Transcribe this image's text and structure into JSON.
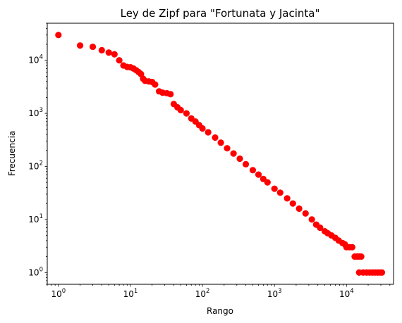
{
  "chart_data": {
    "type": "scatter",
    "title": "Ley de Zipf para \"Fortunata y Jacinta\"",
    "xlabel": "Rango",
    "ylabel": "Frecuencia",
    "xscale": "log",
    "yscale": "log",
    "xlim": [
      0.7,
      45000
    ],
    "ylim": [
      0.6,
      50000
    ],
    "grid": false,
    "marker_color": "#ff0000",
    "x_ticks": [
      {
        "base": "10",
        "exp": "0"
      },
      {
        "base": "10",
        "exp": "1"
      },
      {
        "base": "10",
        "exp": "2"
      },
      {
        "base": "10",
        "exp": "3"
      },
      {
        "base": "10",
        "exp": "4"
      }
    ],
    "y_ticks": [
      {
        "base": "10",
        "exp": "0"
      },
      {
        "base": "10",
        "exp": "1"
      },
      {
        "base": "10",
        "exp": "2"
      },
      {
        "base": "10",
        "exp": "3"
      },
      {
        "base": "10",
        "exp": "4"
      }
    ],
    "series": [
      {
        "points": [
          [
            1,
            30000
          ],
          [
            2,
            19000
          ],
          [
            3,
            18000
          ],
          [
            4,
            15500
          ],
          [
            5,
            14000
          ],
          [
            6,
            13000
          ],
          [
            7,
            10000
          ],
          [
            8,
            8000
          ],
          [
            9,
            7500
          ],
          [
            10,
            7400
          ],
          [
            11,
            7000
          ],
          [
            12,
            6500
          ],
          [
            13,
            6000
          ],
          [
            14,
            5500
          ],
          [
            15,
            4500
          ],
          [
            16,
            4100
          ],
          [
            18,
            4000
          ],
          [
            20,
            3900
          ],
          [
            22,
            3500
          ],
          [
            25,
            2600
          ],
          [
            28,
            2450
          ],
          [
            32,
            2400
          ],
          [
            36,
            2300
          ],
          [
            40,
            1500
          ],
          [
            45,
            1300
          ],
          [
            50,
            1150
          ],
          [
            60,
            1000
          ],
          [
            70,
            800
          ],
          [
            80,
            700
          ],
          [
            90,
            600
          ],
          [
            100,
            520
          ],
          [
            120,
            440
          ],
          [
            150,
            350
          ],
          [
            180,
            280
          ],
          [
            220,
            220
          ],
          [
            270,
            175
          ],
          [
            330,
            140
          ],
          [
            400,
            110
          ],
          [
            500,
            85
          ],
          [
            600,
            70
          ],
          [
            700,
            58
          ],
          [
            800,
            50
          ],
          [
            1000,
            38
          ],
          [
            1200,
            32
          ],
          [
            1500,
            25
          ],
          [
            1800,
            20
          ],
          [
            2200,
            16
          ],
          [
            2700,
            13
          ],
          [
            3300,
            10
          ],
          [
            3800,
            8
          ],
          [
            4300,
            7
          ],
          [
            5000,
            6
          ],
          [
            5500,
            5.5
          ],
          [
            6200,
            5
          ],
          [
            7000,
            4.5
          ],
          [
            7800,
            4
          ],
          [
            8800,
            3.6
          ],
          [
            9500,
            3.4
          ],
          [
            10000,
            3
          ],
          [
            11000,
            3
          ],
          [
            12000,
            3
          ],
          [
            13000,
            2
          ],
          [
            14000,
            2
          ],
          [
            15000,
            2
          ],
          [
            16000,
            2
          ],
          [
            15000,
            1
          ],
          [
            17000,
            1
          ],
          [
            19000,
            1
          ],
          [
            21000,
            1
          ],
          [
            23000,
            1
          ],
          [
            25000,
            1
          ],
          [
            27000,
            1
          ],
          [
            29000,
            1
          ],
          [
            31000,
            1
          ]
        ]
      }
    ]
  }
}
